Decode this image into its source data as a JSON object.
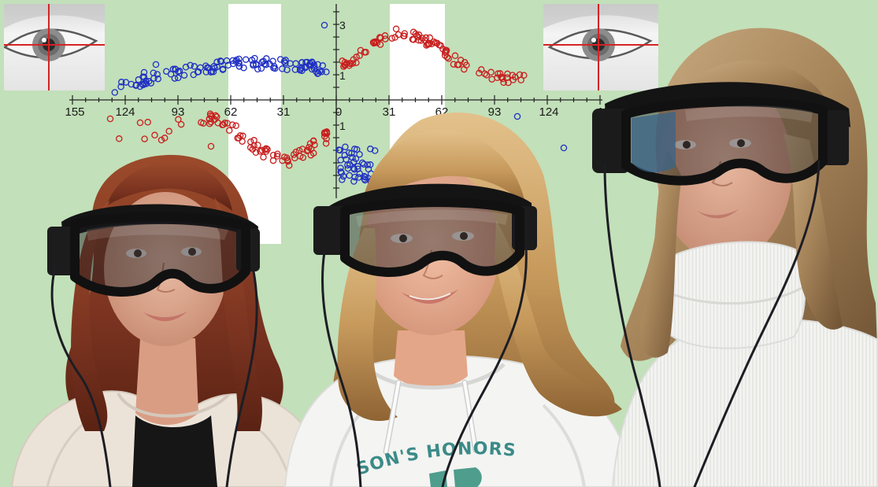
{
  "chart_overlay": {
    "x_tick_labels": [
      "155",
      "124",
      "93",
      "62",
      "31",
      "0",
      "31",
      "62",
      "93",
      "124",
      "155"
    ],
    "y_tick_labels": [
      "3",
      "1",
      "1"
    ],
    "series_colors": {
      "blue": "#1f2fc4",
      "red": "#c81e1e"
    }
  },
  "sweatshirt_print": "SON'S HONORS",
  "colors": {
    "background": "#c2e0b9",
    "crosshair": "#d42424"
  }
}
